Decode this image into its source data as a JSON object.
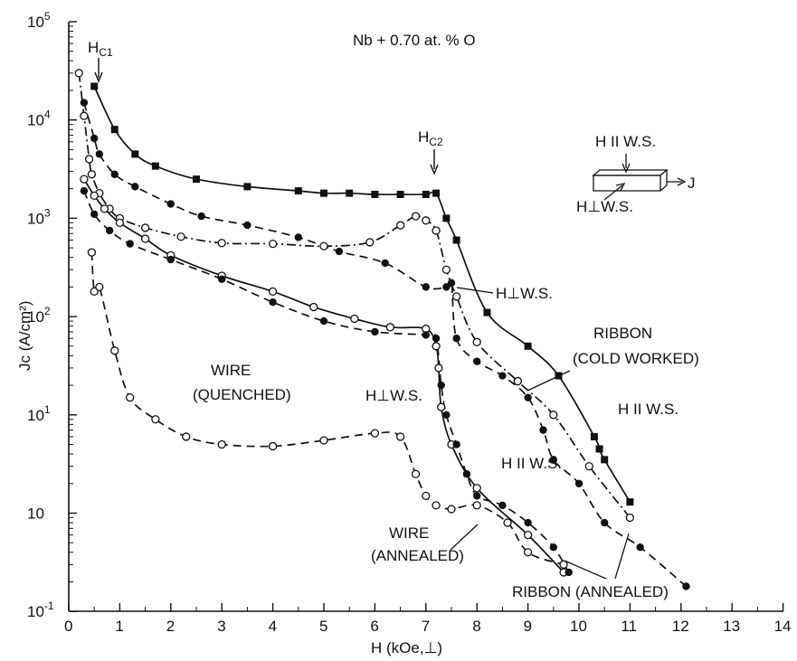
{
  "chart_data": {
    "type": "line",
    "title": "Nb + 0.70 at. % O",
    "xlabel": "H (kOe,⊥)",
    "ylabel": "Jc (A/cm²)",
    "xlim": [
      0,
      14
    ],
    "ylim_exponent": [
      -1,
      5
    ],
    "ylim_note": "log scale",
    "x_ticks": [
      "0",
      "1",
      "2",
      "3",
      "4",
      "5",
      "6",
      "7",
      "8",
      "9",
      "10",
      "11",
      "12",
      "13",
      "14"
    ],
    "y_ticks": [
      {
        "base": "10",
        "sup": "-1"
      },
      {
        "base": "10",
        "sup": ""
      },
      {
        "base": "10",
        "sup": "1"
      },
      {
        "base": "10",
        "sup": "2"
      },
      {
        "base": "10",
        "sup": "3"
      },
      {
        "base": "10",
        "sup": "4"
      },
      {
        "base": "10",
        "sup": "5"
      }
    ],
    "y_tick_values": [
      0.1,
      1,
      10,
      100,
      1000,
      10000,
      100000
    ],
    "hc1": {
      "label": "H",
      "sub": "C1",
      "x": 0.5
    },
    "hc2": {
      "label": "H",
      "sub": "C2",
      "x": 7.0
    },
    "inset": {
      "top_label": "H II W.S.",
      "bottom_label": "H⊥W.S.",
      "arrow_label": "J"
    },
    "annotations": {
      "wire_quenched": [
        "WIRE",
        "(QUENCHED)"
      ],
      "wire_annealed": [
        "WIRE",
        "(ANNEALED)"
      ],
      "ribbon_cold": [
        "RIBBON",
        "(COLD WORKED)"
      ],
      "ribbon_annealed": "RIBBON (ANNEALED)",
      "hperp_1": "H⊥W.S.",
      "hperp_2": "H⊥W.S.",
      "hpar_1": "H II W.S.",
      "hpar_2": "H II W.S."
    },
    "series": [
      {
        "marker": "square-filled",
        "line": "solid",
        "x": [
          0.5,
          0.9,
          1.3,
          1.7,
          2.5,
          3.5,
          4.5,
          5.0,
          5.5,
          6.0,
          6.5,
          7.0,
          7.2,
          7.4,
          7.6,
          8.2,
          9.0,
          9.6,
          10.3,
          10.4,
          10.5,
          11.0
        ],
        "y": [
          22000,
          8000,
          4500,
          3400,
          2500,
          2100,
          1900,
          1800,
          1800,
          1750,
          1750,
          1750,
          1800,
          1000,
          600,
          110,
          50,
          25,
          6,
          4.5,
          3.5,
          1.3
        ]
      },
      {
        "marker": "circle-filled",
        "line": "dashed",
        "x": [
          0.3,
          0.5,
          0.6,
          0.9,
          1.3,
          2.0,
          2.6,
          3.5,
          4.5,
          5.3,
          6.2,
          7.0,
          7.4,
          7.5,
          7.6,
          8.0,
          8.5,
          9.0,
          9.3,
          9.5,
          10.0,
          10.5,
          11.2,
          12.1
        ],
        "y": [
          15000,
          6500,
          4500,
          2800,
          2100,
          1400,
          1050,
          850,
          640,
          460,
          350,
          200,
          200,
          220,
          60,
          35,
          25,
          15,
          7,
          3.5,
          2,
          0.8,
          0.45,
          0.18
        ]
      },
      {
        "marker": "circle-open",
        "line": "dash-dot",
        "x": [
          0.2,
          0.3,
          0.4,
          0.45,
          0.6,
          0.8,
          1.0,
          1.5,
          2.2,
          3.0,
          4.0,
          5.0,
          5.9,
          6.5,
          6.8,
          7.0,
          7.2,
          7.4,
          7.6,
          8.0,
          8.8,
          9.5,
          10.2,
          11.0
        ],
        "y": [
          30000,
          11000,
          4000,
          2800,
          1800,
          1250,
          1000,
          800,
          650,
          560,
          550,
          520,
          570,
          850,
          1050,
          950,
          750,
          300,
          160,
          55,
          22,
          10,
          3,
          0.9
        ]
      },
      {
        "marker": "circle-open",
        "line": "solid",
        "x": [
          0.3,
          0.5,
          0.7,
          1.0,
          1.5,
          2.0,
          3.0,
          4.0,
          4.8,
          5.6,
          6.3,
          7.0,
          7.2,
          7.25,
          7.3,
          7.5,
          8.0,
          9.0,
          9.7
        ],
        "y": [
          2500,
          1700,
          1250,
          900,
          620,
          420,
          260,
          180,
          125,
          95,
          78,
          75,
          50,
          30,
          12,
          5,
          1.8,
          0.6,
          0.25
        ]
      },
      {
        "marker": "circle-filled",
        "line": "dashed",
        "x": [
          0.3,
          0.5,
          0.8,
          1.2,
          2.0,
          3.0,
          4.0,
          5.0,
          6.0,
          7.0,
          7.2,
          7.3,
          7.4,
          7.6,
          7.8,
          8.0,
          8.5,
          9.0,
          9.5,
          9.8
        ],
        "y": [
          1900,
          1100,
          750,
          550,
          380,
          240,
          140,
          90,
          70,
          65,
          60,
          20,
          10,
          5,
          2.5,
          1.5,
          1.2,
          0.8,
          0.45,
          0.25
        ]
      },
      {
        "marker": "circle-open",
        "line": "dashed",
        "x": [
          0.45,
          0.5,
          0.6,
          0.9,
          1.2,
          1.7,
          2.3,
          3.0,
          4.0,
          5.0,
          6.0,
          6.5,
          6.8,
          7.0,
          7.2,
          7.5,
          8.0,
          8.6,
          9.0,
          9.7
        ],
        "y": [
          450,
          180,
          200,
          45,
          15,
          9,
          6,
          5,
          4.8,
          5.5,
          6.5,
          6.0,
          2.5,
          1.5,
          1.2,
          1.1,
          1.2,
          0.8,
          0.4,
          0.3
        ]
      }
    ]
  }
}
